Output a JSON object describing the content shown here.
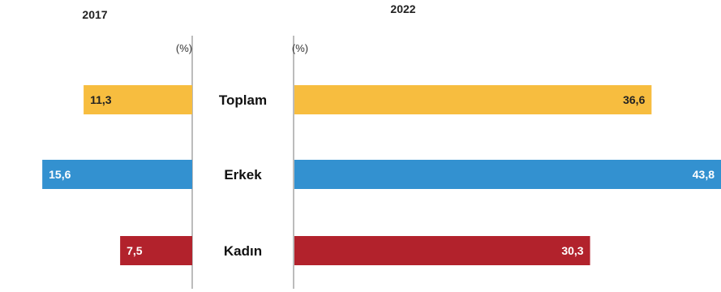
{
  "chart_data": {
    "type": "bar",
    "layout": "butterfly",
    "unit": "(%)",
    "categories": [
      "Toplam",
      "Erkek",
      "Kadın"
    ],
    "series": [
      {
        "name": "2017",
        "side": "left",
        "values": [
          11.3,
          15.6,
          7.5
        ],
        "labels": [
          "11,3",
          "15,6",
          "7,5"
        ]
      },
      {
        "name": "2022",
        "side": "right",
        "values": [
          36.6,
          43.8,
          30.3
        ],
        "labels": [
          "36,6",
          "43,8",
          "30,3"
        ]
      }
    ],
    "colors": {
      "Toplam": "#f7bd3f",
      "Erkek": "#3391d0",
      "Kadın": "#b2222c"
    },
    "label_colors": {
      "Toplam": "#222222",
      "Erkek": "#ffffff",
      "Kadın": "#ffffff"
    },
    "axis_color": "#7a7a7a"
  }
}
